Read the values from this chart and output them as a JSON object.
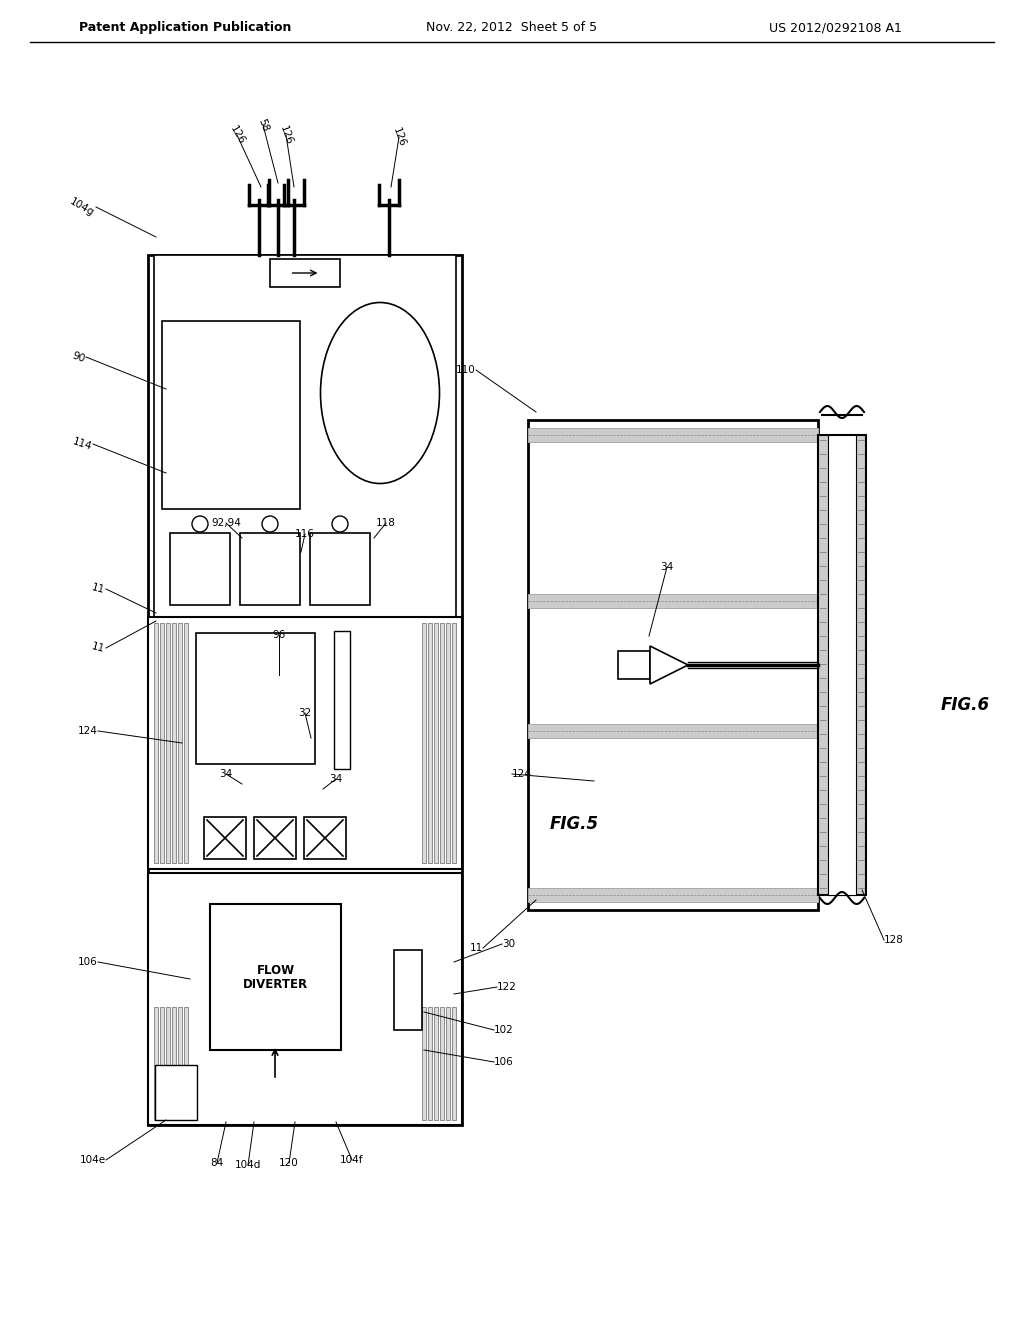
{
  "header_left": "Patent Application Publication",
  "header_center": "Nov. 22, 2012  Sheet 5 of 5",
  "header_right": "US 2012/0292108 A1",
  "fig5_label": "FIG.5",
  "fig6_label": "FIG.6",
  "bg": "#ffffff",
  "lc": "#000000",
  "gray": "#aaaaaa",
  "lgray": "#cccccc",
  "dgray": "#888888"
}
